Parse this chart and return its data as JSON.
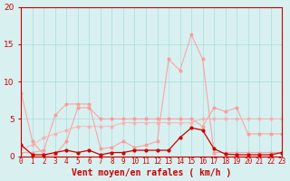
{
  "x": [
    0,
    1,
    2,
    3,
    4,
    5,
    6,
    7,
    8,
    9,
    10,
    11,
    12,
    13,
    14,
    15,
    16,
    17,
    18,
    19,
    20,
    21,
    22,
    23
  ],
  "line1_y": [
    1.5,
    0.2,
    0.2,
    0.5,
    0.8,
    0.5,
    0.8,
    0.2,
    0.5,
    0.5,
    0.8,
    0.8,
    0.8,
    0.8,
    2.5,
    3.8,
    3.5,
    1.0,
    0.3,
    0.2,
    0.2,
    0.2,
    0.2,
    0.5
  ],
  "line2_y": [
    8.5,
    2.0,
    0.2,
    0.2,
    2.0,
    6.5,
    6.5,
    5.0,
    5.0,
    5.0,
    5.0,
    5.0,
    5.0,
    5.0,
    5.0,
    5.0,
    4.0,
    6.5,
    6.0,
    6.5,
    3.0,
    3.0,
    3.0,
    3.0
  ],
  "line3_y": [
    0.5,
    0.5,
    0.8,
    5.5,
    7.0,
    7.0,
    7.0,
    1.0,
    1.2,
    2.0,
    1.2,
    1.5,
    2.0,
    13.0,
    11.5,
    16.3,
    13.0,
    0.5,
    0.5,
    0.5,
    0.5,
    0.5,
    0.5,
    0.5
  ],
  "line4_y": [
    1.0,
    1.5,
    2.5,
    3.0,
    3.5,
    4.0,
    4.0,
    4.0,
    4.0,
    4.5,
    4.5,
    4.5,
    4.5,
    4.5,
    4.5,
    4.5,
    5.0,
    5.0,
    5.0,
    5.0,
    5.0,
    5.0,
    5.0,
    5.0
  ],
  "bg_color": "#d8f0f0",
  "grid_color": "#aadddd",
  "line1_color": "#cc0000",
  "line2_color": "#ff9999",
  "line3_color": "#ff9999",
  "line4_color": "#ffaaaa",
  "xlabel": "Vent moyen/en rafales ( km/h )",
  "ylim": [
    0,
    20
  ],
  "yticks": [
    0,
    5,
    10,
    15,
    20
  ],
  "xlim": [
    0,
    23
  ]
}
